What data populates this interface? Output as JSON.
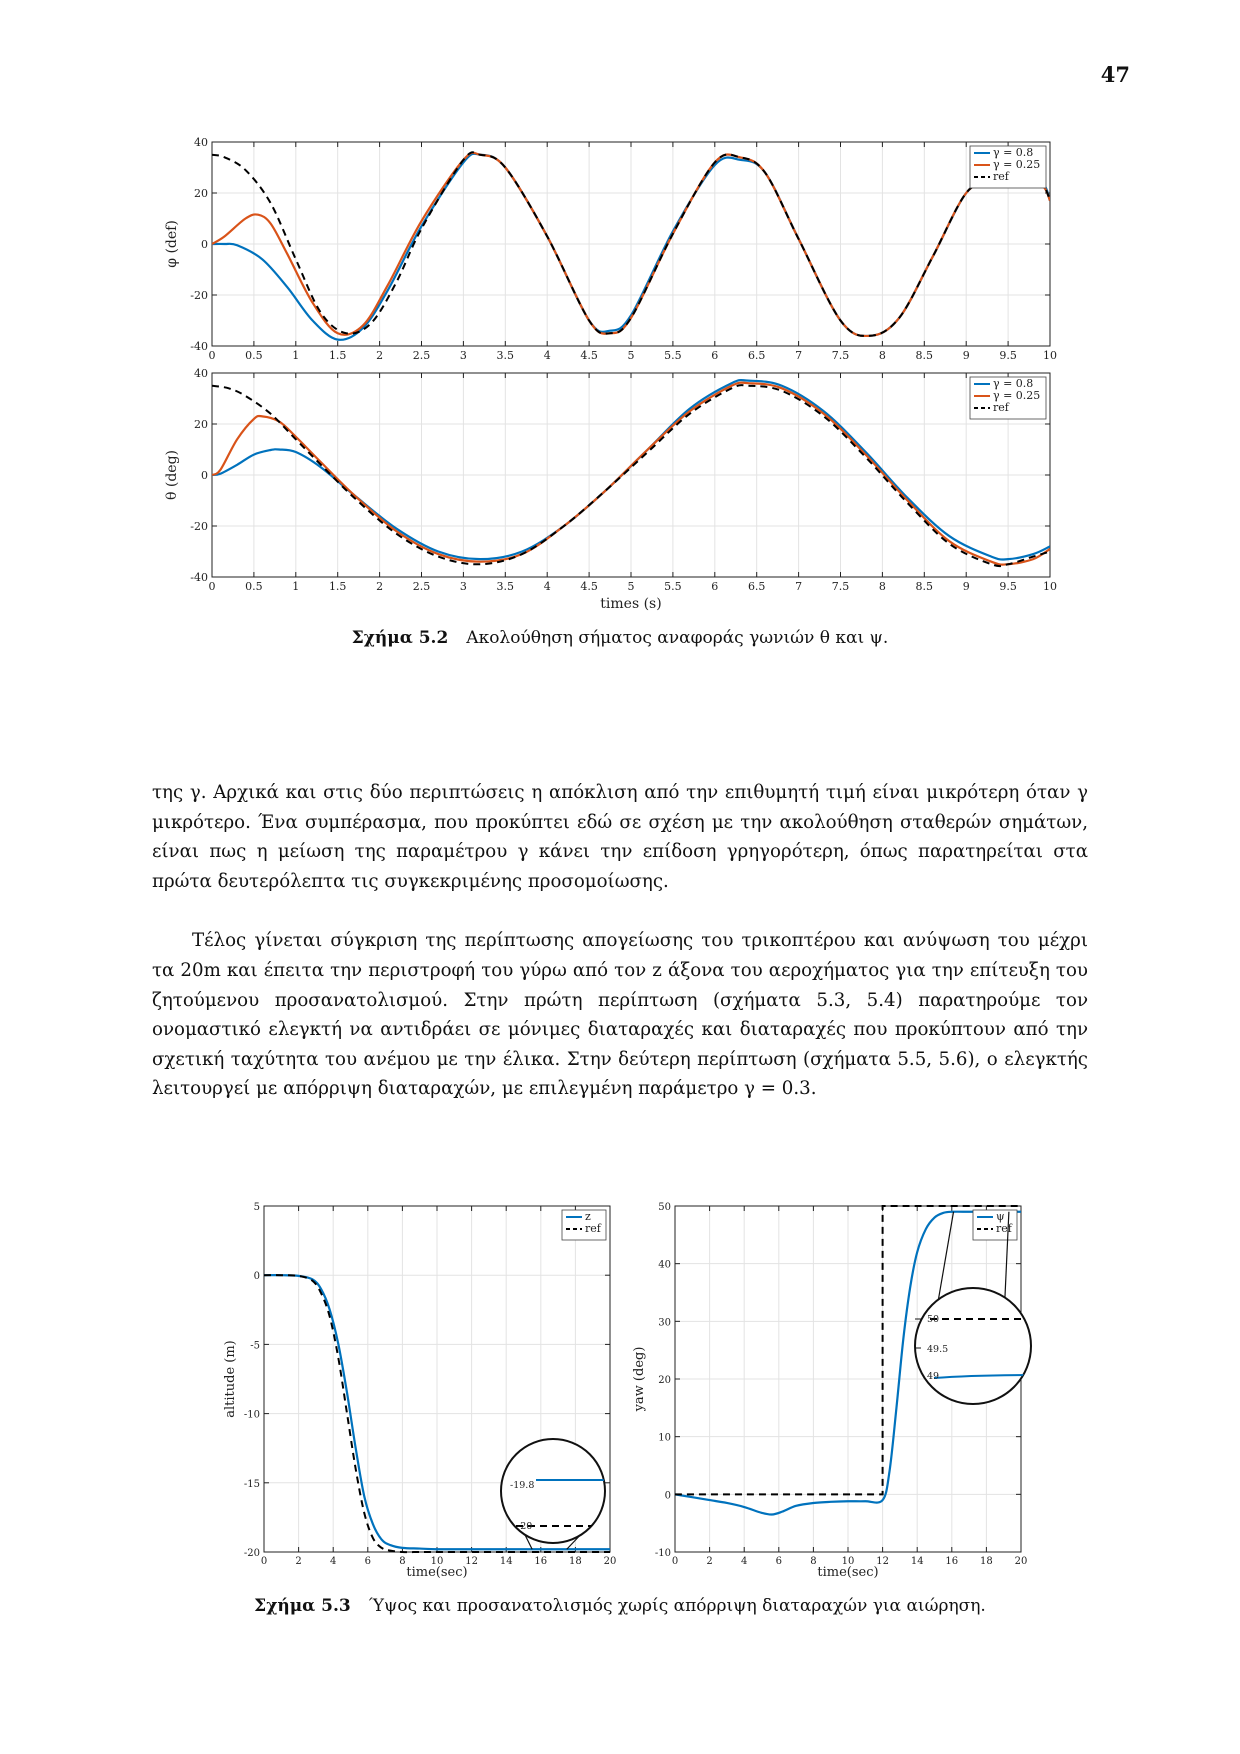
{
  "page_number": "47",
  "figure_5_2": {
    "caption_label": "Σχήμα 5.2",
    "caption_text": "Ακολούθηση σήματος αναφοράς γωνιών θ και ψ."
  },
  "figure_5_3": {
    "caption_label": "Σχήμα 5.3",
    "caption_text": "Ύψος και προσανατολισμός χωρίς απόρριψη διαταραχών για αιώρηση."
  },
  "paragraph1": "της γ. Αρχικά και στις δύο περιπτώσεις η απόκλιση από την επιθυμητή τιμή είναι μικρότερη όταν γ μικρότερο. Ένα συμπέρασμα, που προκύπτει εδώ σε σχέση με την ακολούθηση σταθερών σημάτων, είναι πως η μείωση της παραμέτρου γ κάνει την επίδοση γρηγορότερη, όπως παρατηρείται στα πρώτα δευτερόλεπτα τις συγκεκριμένης προσομοίωσης.",
  "paragraph2": "Τέλος γίνεται σύγκριση της περίπτωσης απογείωσης του τρικοπτέρου και ανύψωση του μέχρι τα 20m και έπειτα την περιστροφή του γύρω από τον z άξονα του αεροχήματος για την επίτευξη του ζητούμενου προσανατολισμού. Στην πρώτη περίπτωση (σχήματα 5.3, 5.4) παρατηρούμε τον ονομαστικό ελεγκτή να αντιδράει σε μόνιμες διαταραχές και διαταραχές που προκύπτουν από την σχετική ταχύτητα του ανέμου με την έλικα. Στην δεύτερη περίπτωση (σχήματα 5.5, 5.6), ο ελεγκτής λειτουργεί με απόρριψη διαταραχών, με επιλεγμένη παράμετρο γ = 0.3.",
  "chart_data": [
    {
      "type": "line",
      "id": "phi",
      "ylabel": "φ (def)",
      "xlabel": "",
      "xlim": [
        0,
        10
      ],
      "ylim": [
        -40,
        40
      ],
      "xticks": [
        "0",
        "0.5",
        "1",
        "1.5",
        "2",
        "2.5",
        "3",
        "3.5",
        "4",
        "4.5",
        "5",
        "5.5",
        "6",
        "6.5",
        "7",
        "7.5",
        "8",
        "8.5",
        "9",
        "9.5",
        "10"
      ],
      "yticks": [
        "40",
        "20",
        "0",
        "-20",
        "-40"
      ],
      "grid": true,
      "legend_position": "top-right",
      "series": [
        {
          "name": "γ = 0.8",
          "color": "#0072BD",
          "dash": "solid",
          "x": [
            0,
            0.15,
            0.3,
            0.6,
            0.9,
            1.2,
            1.5,
            1.8,
            2.1,
            2.5,
            3.0,
            3.2,
            3.5,
            4.0,
            4.5,
            4.75,
            5.0,
            5.5,
            6.0,
            6.3,
            6.6,
            7.0,
            7.5,
            7.85,
            8.2,
            8.6,
            9.0,
            9.3,
            9.6,
            9.9,
            10
          ],
          "y": [
            0,
            0,
            -0.5,
            -6,
            -17,
            -30,
            -37.5,
            -33,
            -18,
            7,
            32,
            35,
            30,
            3,
            -30,
            -34,
            -28,
            5,
            31,
            33,
            28,
            2,
            -30,
            -36,
            -29,
            -5,
            20,
            25,
            24,
            24,
            17
          ]
        },
        {
          "name": "γ = 0.25",
          "color": "#D95319",
          "dash": "solid",
          "x": [
            0,
            0.15,
            0.4,
            0.55,
            0.7,
            0.9,
            1.2,
            1.5,
            1.8,
            2.1,
            2.5,
            3.0,
            3.2,
            3.5,
            4.0,
            4.5,
            4.75,
            5.0,
            5.5,
            6.0,
            6.3,
            6.6,
            7.0,
            7.5,
            7.85,
            8.2,
            8.6,
            9.0,
            9.3,
            9.6,
            9.9,
            10
          ],
          "y": [
            0,
            3,
            10,
            11.5,
            8,
            -4,
            -23,
            -35,
            -32,
            -16,
            9,
            33,
            35,
            30,
            3,
            -30,
            -35,
            -29,
            4,
            32,
            34,
            28,
            2,
            -30,
            -36,
            -29,
            -5,
            20,
            24,
            24,
            23,
            17
          ]
        },
        {
          "name": "ref",
          "color": "#000000",
          "dash": "dashed",
          "x": [
            0,
            0.15,
            0.4,
            0.7,
            1.0,
            1.3,
            1.6,
            1.9,
            2.2,
            2.5,
            3.0,
            3.2,
            3.5,
            4.0,
            4.5,
            4.75,
            5.0,
            5.5,
            6.0,
            6.3,
            6.6,
            7.0,
            7.5,
            7.85,
            8.2,
            8.6,
            9.0,
            9.3,
            9.6,
            9.9,
            10
          ],
          "y": [
            35,
            34,
            29,
            16,
            -6,
            -27,
            -35,
            -31,
            -15,
            6,
            33,
            35,
            30,
            3,
            -30,
            -35,
            -29,
            4,
            32,
            34,
            28,
            2,
            -30,
            -36,
            -29,
            -5,
            20,
            24,
            24,
            23,
            17
          ]
        }
      ]
    },
    {
      "type": "line",
      "id": "theta",
      "ylabel": "θ (deg)",
      "xlabel": "times (s)",
      "xlim": [
        0,
        10
      ],
      "ylim": [
        -40,
        40
      ],
      "xticks": [
        "0",
        "0.5",
        "1",
        "1.5",
        "2",
        "2.5",
        "3",
        "3.5",
        "4",
        "4.5",
        "5",
        "5.5",
        "6",
        "6.5",
        "7",
        "7.5",
        "8",
        "8.5",
        "9",
        "9.5",
        "10"
      ],
      "yticks": [
        "40",
        "20",
        "0",
        "-20",
        "-40"
      ],
      "grid": true,
      "legend_position": "top-right",
      "series": [
        {
          "name": "γ = 0.8",
          "color": "#0072BD",
          "dash": "solid",
          "x": [
            0,
            0.1,
            0.3,
            0.5,
            0.7,
            0.8,
            1.0,
            1.3,
            1.7,
            2.2,
            2.7,
            3.2,
            3.7,
            4.2,
            4.7,
            5.2,
            5.7,
            6.2,
            6.4,
            6.8,
            7.3,
            7.8,
            8.3,
            8.8,
            9.3,
            9.5,
            9.8,
            10
          ],
          "y": [
            0,
            0.5,
            4,
            8,
            9.8,
            10,
            9,
            3,
            -8,
            -21,
            -30,
            -33,
            -30,
            -20,
            -6,
            10,
            26,
            36,
            37,
            35,
            25,
            9,
            -9,
            -24,
            -32,
            -33,
            -31,
            -28
          ]
        },
        {
          "name": "γ = 0.25",
          "color": "#D95319",
          "dash": "solid",
          "x": [
            0,
            0.1,
            0.3,
            0.5,
            0.6,
            0.8,
            1.0,
            1.3,
            1.7,
            2.2,
            2.7,
            3.2,
            3.7,
            4.2,
            4.7,
            5.2,
            5.7,
            6.2,
            6.4,
            6.8,
            7.3,
            7.8,
            8.3,
            8.8,
            9.3,
            9.5,
            9.8,
            10
          ],
          "y": [
            0,
            2,
            14,
            22,
            23,
            21,
            15,
            5,
            -8,
            -22,
            -31,
            -34,
            -31,
            -20,
            -6,
            10,
            25,
            35,
            36,
            34,
            24,
            8,
            -10,
            -26,
            -34,
            -35,
            -33,
            -29
          ]
        },
        {
          "name": "ref",
          "color": "#000000",
          "dash": "dashed",
          "x": [
            0,
            0.2,
            0.4,
            0.7,
            1.0,
            1.3,
            1.7,
            2.2,
            2.7,
            3.2,
            3.7,
            4.2,
            4.7,
            5.2,
            5.7,
            6.2,
            6.4,
            6.8,
            7.3,
            7.8,
            8.3,
            8.8,
            9.3,
            9.5,
            9.8,
            10
          ],
          "y": [
            35,
            34,
            31,
            24,
            14,
            4,
            -9,
            -23,
            -32,
            -35,
            -31,
            -20,
            -6,
            9,
            24,
            34,
            35,
            33,
            23,
            7,
            -11,
            -27,
            -35,
            -35,
            -32,
            -30
          ]
        }
      ]
    },
    {
      "type": "line",
      "id": "altitude",
      "ylabel": "altitude (m)",
      "xlabel": "time(sec)",
      "xlim": [
        0,
        20
      ],
      "ylim": [
        -20,
        5
      ],
      "xticks": [
        "0",
        "2",
        "4",
        "6",
        "8",
        "10",
        "12",
        "14",
        "16",
        "18",
        "20"
      ],
      "yticks": [
        "5",
        "0",
        "-5",
        "-10",
        "-15",
        "-20"
      ],
      "grid": true,
      "legend_position": "top-right",
      "inset_labels": [
        "-19.8",
        "-20"
      ],
      "series": [
        {
          "name": "z",
          "color": "#0072BD",
          "dash": "solid",
          "x": [
            0,
            1,
            2,
            2.8,
            3.3,
            3.8,
            4.3,
            4.8,
            5.3,
            5.8,
            6.3,
            6.8,
            7.3,
            8,
            9,
            10,
            12,
            14,
            16,
            18,
            20
          ],
          "y": [
            0,
            0,
            -0.05,
            -0.3,
            -1,
            -2.5,
            -5,
            -8.5,
            -12.5,
            -16,
            -18,
            -19.1,
            -19.5,
            -19.7,
            -19.75,
            -19.8,
            -19.8,
            -19.8,
            -19.8,
            -19.8,
            -19.8
          ]
        },
        {
          "name": "ref",
          "color": "#000000",
          "dash": "dashed",
          "x": [
            0,
            1,
            2,
            2.8,
            3.3,
            3.8,
            4.3,
            4.8,
            5.3,
            5.8,
            6.3,
            6.8,
            7.3,
            8,
            9,
            10,
            12,
            14,
            16,
            18,
            20
          ],
          "y": [
            0,
            0,
            -0.05,
            -0.4,
            -1.3,
            -3,
            -6,
            -10,
            -14,
            -17.2,
            -19,
            -19.7,
            -19.9,
            -20,
            -20,
            -20,
            -20,
            -20,
            -20,
            -20,
            -20
          ]
        }
      ]
    },
    {
      "type": "line",
      "id": "yaw",
      "ylabel": "yaw (deg)",
      "xlabel": "time(sec)",
      "xlim": [
        0,
        20
      ],
      "ylim": [
        -10,
        50
      ],
      "xticks": [
        "0",
        "2",
        "4",
        "6",
        "8",
        "10",
        "12",
        "14",
        "16",
        "18",
        "20"
      ],
      "yticks": [
        "50",
        "40",
        "30",
        "20",
        "10",
        "0",
        "-10"
      ],
      "grid": true,
      "legend_position": "top-right",
      "inset_labels": [
        "50",
        "49.5",
        "49"
      ],
      "series": [
        {
          "name": "ψ",
          "color": "#0072BD",
          "dash": "solid",
          "x": [
            0,
            1,
            2,
            3,
            4,
            5,
            5.6,
            6.2,
            7,
            8,
            9,
            10,
            11,
            12,
            12.4,
            12.8,
            13.2,
            13.6,
            14,
            14.5,
            15,
            15.5,
            16,
            17,
            18,
            19,
            20
          ],
          "y": [
            0,
            -0.5,
            -1,
            -1.5,
            -2.2,
            -3.2,
            -3.5,
            -3,
            -2,
            -1.5,
            -1.3,
            -1.2,
            -1.2,
            -1,
            4,
            15,
            27,
            36,
            42,
            46,
            48,
            48.8,
            49,
            49,
            49,
            49,
            49
          ]
        },
        {
          "name": "ref",
          "color": "#000000",
          "dash": "dashed",
          "x": [
            0,
            12,
            12,
            20
          ],
          "y": [
            0,
            0,
            50,
            50
          ]
        }
      ]
    }
  ]
}
